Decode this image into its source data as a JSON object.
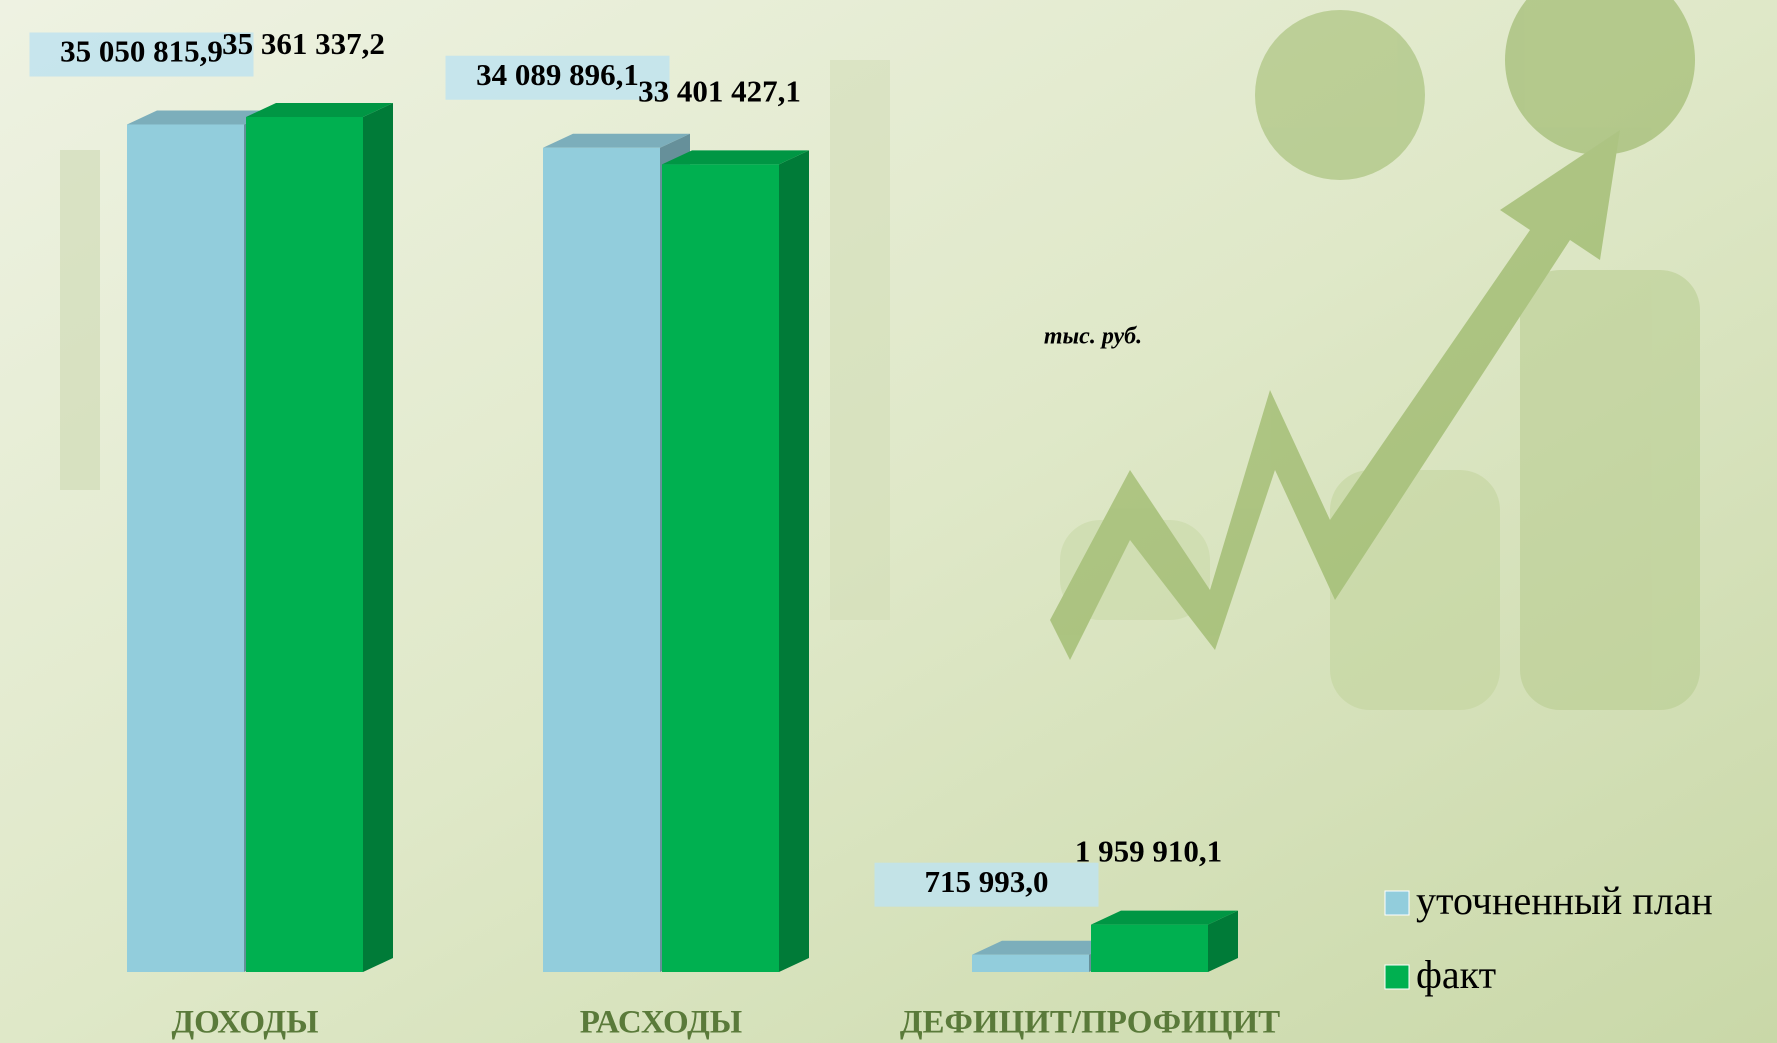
{
  "chart_data": {
    "type": "bar3d",
    "unit_note": "тыс. руб.",
    "categories": [
      "ДОХОДЫ",
      "РАСХОДЫ",
      "ДЕФИЦИТ/ПРОФИЦИТ"
    ],
    "series": [
      {
        "name": "уточненный план",
        "color": "#92cddc",
        "values": [
          35050815.9,
          34089896.1,
          715993.0
        ],
        "value_labels": [
          "35 050 815,9",
          "34 089 896,1",
          "715 993,0"
        ]
      },
      {
        "name": "факт",
        "color": "#00b050",
        "values": [
          35361337.2,
          33401427.1,
          1959910.1
        ],
        "value_labels": [
          "35 361 337,2",
          "33 401 427,1",
          "1 959 910,1"
        ]
      }
    ],
    "legend": "bottom-right"
  }
}
